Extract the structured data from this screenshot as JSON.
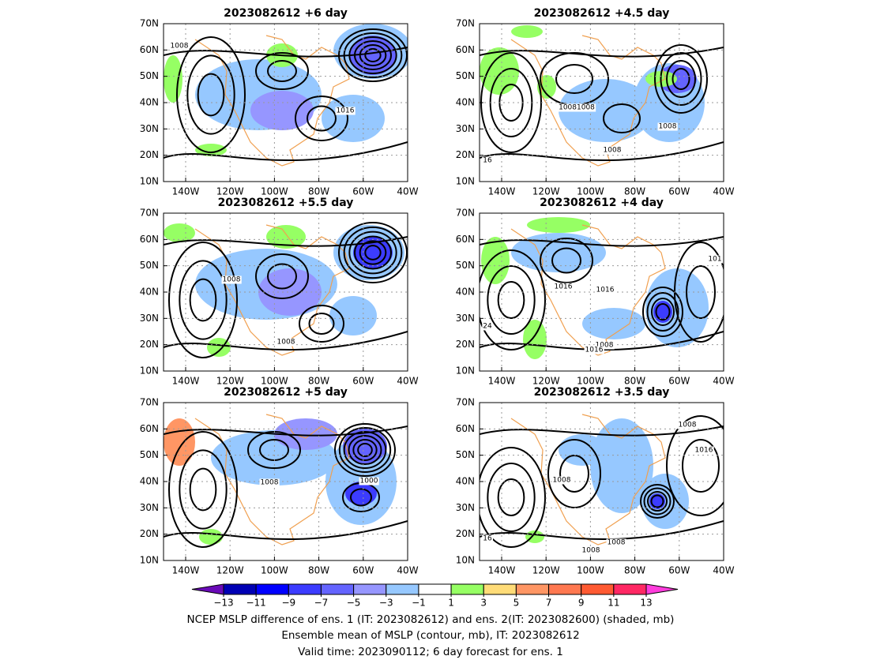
{
  "panels": [
    {
      "title": "2023082612  +6 day",
      "contour_labels": [
        "1008",
        "1016"
      ]
    },
    {
      "title": "2023082612  +4.5 day",
      "contour_labels": [
        "10081008",
        "1008",
        "1008",
        "16"
      ]
    },
    {
      "title": "2023082612  +5.5 day",
      "contour_labels": [
        "1008",
        "1008"
      ]
    },
    {
      "title": "2023082612  +4 day",
      "contour_labels": [
        "1016",
        "1016",
        "1008",
        "1016",
        "24",
        "101"
      ]
    },
    {
      "title": "2023082612  +5 day",
      "contour_labels": [
        "1008",
        "1000"
      ]
    },
    {
      "title": "2023082612  +3.5 day",
      "contour_labels": [
        "1008",
        "1008",
        "1016",
        "1008",
        "1008",
        "16"
      ]
    }
  ],
  "lat_ticks": [
    "70N",
    "60N",
    "50N",
    "40N",
    "30N",
    "20N",
    "10N"
  ],
  "lon_ticks": [
    "140W",
    "120W",
    "100W",
    "80W",
    "60W",
    "40W"
  ],
  "colorbar": {
    "ticks": [
      {
        "value": -13,
        "label": "−13"
      },
      {
        "value": -11,
        "label": "−11"
      },
      {
        "value": -9,
        "label": "−9"
      },
      {
        "value": -7,
        "label": "−7"
      },
      {
        "value": -5,
        "label": "−5"
      },
      {
        "value": -3,
        "label": "−3"
      },
      {
        "value": -1,
        "label": "−1"
      },
      1,
      3,
      5,
      7,
      9,
      11,
      13
    ],
    "colors": [
      "#6a0ab8",
      "#0000b4",
      "#0000ff",
      "#3c3cff",
      "#6464ff",
      "#9696ff",
      "#96c8ff",
      "#ffffff",
      "#96ff64",
      "#ffdc78",
      "#ff9664",
      "#ff7850",
      "#ff5a32",
      "#ff2864",
      "#ff3cdc"
    ]
  },
  "caption": [
    "NCEP MSLP difference of ens. 1 (IT: 2023082612) and ens. 2(IT: 2023082600) (shaded, mb)",
    "Ensemble mean of MSLP (contour, mb), IT: 2023082612",
    "Valid time: 2023090112; 6 day forecast for ens. 1"
  ]
}
